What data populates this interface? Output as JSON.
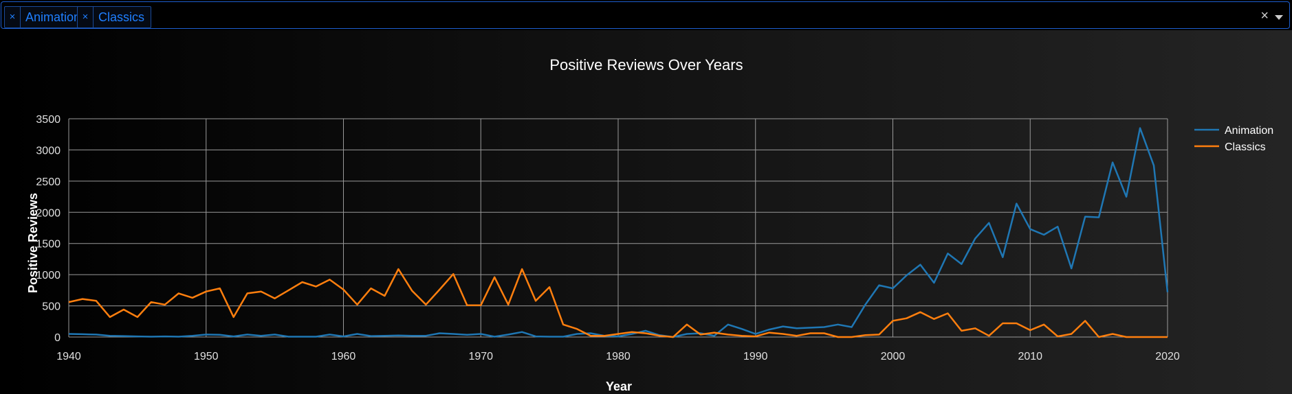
{
  "filter": {
    "chips": [
      {
        "label": "Animation",
        "remove": "×"
      },
      {
        "label": "Classics",
        "remove": "×"
      }
    ],
    "clear_all": "×"
  },
  "colors": {
    "Animation": "#1f77b4",
    "Classics": "#ff7f0e",
    "grid": "#9a9a9a"
  },
  "chart_data": {
    "type": "line",
    "title": "Positive Reviews Over Years",
    "xlabel": "Year",
    "ylabel": "Positive Reviews",
    "xlim": [
      1940,
      2020
    ],
    "ylim": [
      0,
      3500
    ],
    "xticks": [
      1940,
      1950,
      1960,
      1970,
      1980,
      1990,
      2000,
      2010,
      2020
    ],
    "yticks": [
      0,
      500,
      1000,
      1500,
      2000,
      2500,
      3000,
      3500
    ],
    "grid": true,
    "legend_position": "top-right",
    "x": [
      1940,
      1941,
      1942,
      1943,
      1944,
      1945,
      1946,
      1947,
      1948,
      1949,
      1950,
      1951,
      1952,
      1953,
      1954,
      1955,
      1956,
      1957,
      1958,
      1959,
      1960,
      1961,
      1962,
      1963,
      1964,
      1965,
      1966,
      1967,
      1968,
      1969,
      1970,
      1971,
      1972,
      1973,
      1974,
      1975,
      1976,
      1977,
      1978,
      1979,
      1980,
      1981,
      1982,
      1983,
      1984,
      1985,
      1986,
      1987,
      1988,
      1989,
      1990,
      1991,
      1992,
      1993,
      1994,
      1995,
      1996,
      1997,
      1998,
      1999,
      2000,
      2001,
      2002,
      2003,
      2004,
      2005,
      2006,
      2007,
      2008,
      2009,
      2010,
      2011,
      2012,
      2013,
      2014,
      2015,
      2016,
      2017,
      2018,
      2019,
      2020
    ],
    "series": [
      {
        "name": "Animation",
        "values": [
          50,
          45,
          40,
          20,
          15,
          10,
          5,
          10,
          5,
          20,
          40,
          35,
          10,
          40,
          20,
          40,
          5,
          5,
          5,
          40,
          10,
          50,
          15,
          20,
          25,
          20,
          20,
          60,
          50,
          35,
          50,
          5,
          40,
          80,
          10,
          5,
          5,
          50,
          60,
          20,
          10,
          50,
          100,
          30,
          0,
          50,
          60,
          20,
          200,
          130,
          50,
          120,
          170,
          140,
          150,
          160,
          200,
          160,
          520,
          830,
          780,
          990,
          1160,
          870,
          1340,
          1170,
          1580,
          1830,
          1280,
          2140,
          1730,
          1640,
          1770,
          1100,
          1930,
          1920,
          2800,
          2250,
          3350,
          2750,
          720
        ]
      },
      {
        "name": "Classics",
        "values": [
          560,
          610,
          580,
          320,
          440,
          320,
          560,
          520,
          700,
          630,
          730,
          780,
          320,
          700,
          730,
          620,
          750,
          880,
          810,
          920,
          760,
          520,
          780,
          660,
          1090,
          740,
          520,
          760,
          1010,
          510,
          510,
          960,
          520,
          1090,
          580,
          800,
          200,
          130,
          20,
          20,
          50,
          80,
          60,
          20,
          0,
          200,
          40,
          70,
          40,
          20,
          10,
          70,
          50,
          20,
          60,
          60,
          0,
          0,
          30,
          40,
          260,
          300,
          400,
          290,
          380,
          100,
          140,
          20,
          220,
          220,
          110,
          200,
          10,
          50,
          260,
          0,
          50,
          0,
          0,
          0,
          0
        ]
      }
    ]
  }
}
